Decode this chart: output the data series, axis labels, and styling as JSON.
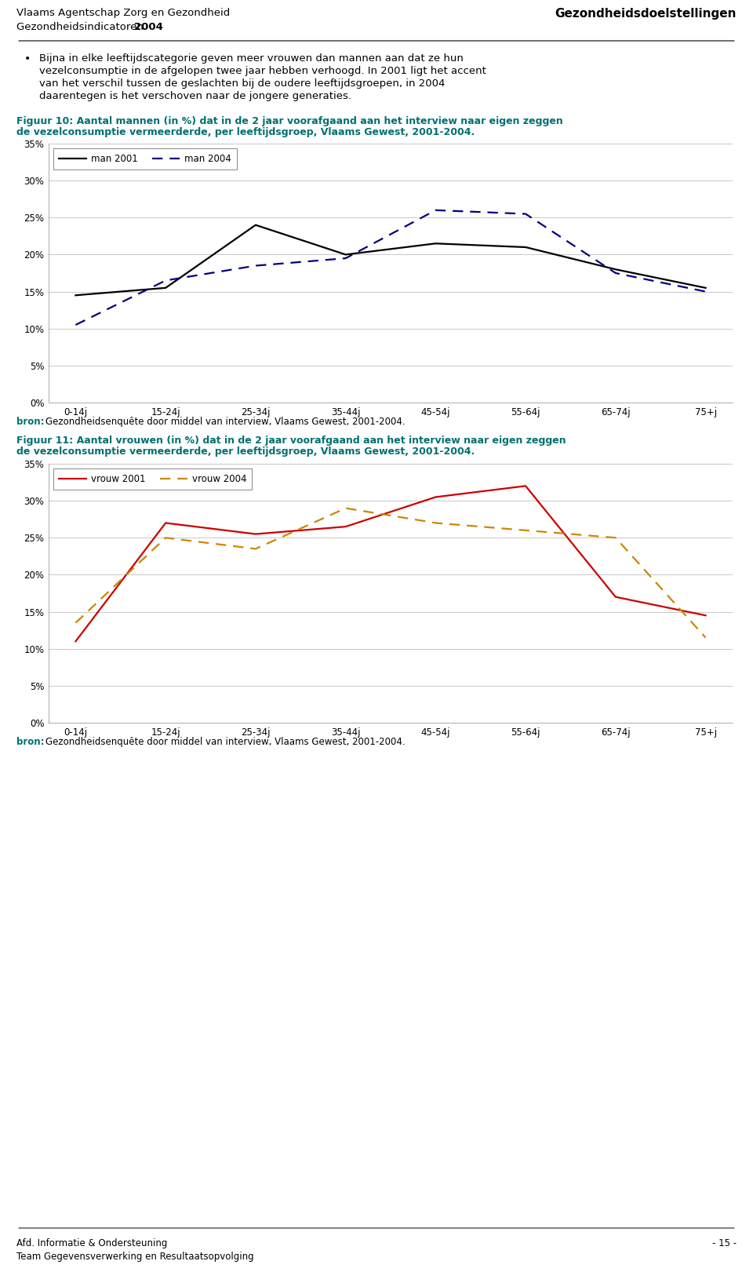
{
  "header_left_line1": "Vlaams Agentschap Zorg en Gezondheid",
  "header_left_line2_normal": "Gezondheidsindicatoren ",
  "header_left_line2_bold": "2004",
  "header_right": "Gezondheidsdoelstellingen",
  "bullet_text_line1": "Bijna in elke leeftijdscategorie geven meer vrouwen dan mannen aan dat ze hun",
  "bullet_text_line2": "vezelconsumptie in de afgelopen twee jaar hebben verhoogd. In 2001 ligt het accent",
  "bullet_text_line3": "van het verschil tussen de geslachten bij de oudere leeftijdsgroepen, in 2004",
  "bullet_text_line4": "daarentegen is het verschoven naar de jongere generaties.",
  "fig10_title_line1": "Figuur 10: Aantal mannen (in %) dat in de 2 jaar voorafgaand aan het interview naar eigen zeggen",
  "fig10_title_line2": "de vezelconsumptie vermeerderde, per leeftijdsgroep, Vlaams Gewest, 2001-2004.",
  "fig10_bron": "Gezondheidsenquête door middel van interview, Vlaams Gewest, 2001-2004.",
  "fig10_legend_man2001": "man 2001",
  "fig10_legend_man2004": "man 2004",
  "fig10_categories": [
    "0-14j",
    "15-24j",
    "25-34j",
    "35-44j",
    "45-54j",
    "55-64j",
    "65-74j",
    "75+j"
  ],
  "fig10_man2001": [
    14.5,
    15.5,
    24.0,
    20.0,
    21.5,
    21.0,
    18.0,
    15.5
  ],
  "fig10_man2004": [
    10.5,
    16.5,
    18.5,
    19.5,
    26.0,
    25.5,
    17.5,
    15.0
  ],
  "fig10_color2001": "#000000",
  "fig10_color2004": "#000080",
  "fig11_title_line1": "Figuur 11: Aantal vrouwen (in %) dat in de 2 jaar voorafgaand aan het interview naar eigen zeggen",
  "fig11_title_line2": "de vezelconsumptie vermeerderde, per leeftijdsgroep, Vlaams Gewest, 2001-2004.",
  "fig11_bron": "Gezondheidsenquête door middel van interview, Vlaams Gewest, 2001-2004.",
  "fig11_legend_vrouw2001": "vrouw 2001",
  "fig11_legend_vrouw2004": "vrouw 2004",
  "fig11_categories": [
    "0-14j",
    "15-24j",
    "25-34j",
    "35-44j",
    "45-54j",
    "55-64j",
    "65-74j",
    "75+j"
  ],
  "fig11_vrouw2001": [
    11.0,
    27.0,
    25.5,
    26.5,
    30.5,
    32.0,
    17.0,
    14.5
  ],
  "fig11_vrouw2004": [
    13.5,
    25.0,
    23.5,
    29.0,
    27.0,
    26.0,
    25.0,
    11.5
  ],
  "fig11_color2001": "#cc0000",
  "fig11_color2004": "#cc8800",
  "ylim": [
    0,
    35
  ],
  "yticks": [
    0,
    5,
    10,
    15,
    20,
    25,
    30,
    35
  ],
  "ytick_labels": [
    "0%",
    "5%",
    "10%",
    "15%",
    "20%",
    "25%",
    "30%",
    "35%"
  ],
  "footer_left_line1": "Afd. Informatie & Ondersteuning",
  "footer_left_line2": "Team Gegevensverwerking en Resultaatsopvolging",
  "footer_right": "- 15 -",
  "title_color": "#007070",
  "bron_label": "bron:",
  "background_color": "#ffffff",
  "grid_color": "#c8c8c8"
}
